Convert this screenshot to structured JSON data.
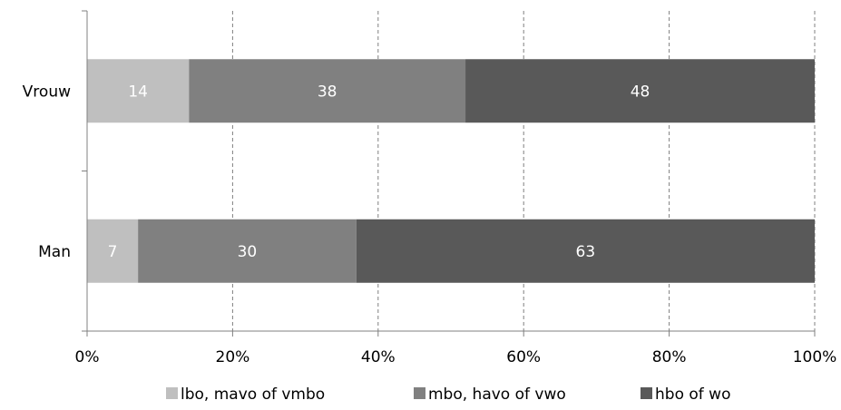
{
  "chart_data": {
    "type": "bar",
    "orientation": "horizontal",
    "stacked": "percent",
    "title": "",
    "xlabel": "",
    "ylabel": "",
    "categories": [
      "Vrouw",
      "Man"
    ],
    "series": [
      {
        "name": "lbo, mavo of vmbo",
        "values": [
          14,
          7
        ],
        "color": "#bfbfbf"
      },
      {
        "name": "mbo, havo of vwo",
        "values": [
          38,
          30
        ],
        "color": "#808080"
      },
      {
        "name": "hbo of wo",
        "values": [
          48,
          63
        ],
        "color": "#595959"
      }
    ],
    "xlim": [
      0,
      100
    ],
    "xticks": [
      "0%",
      "20%",
      "40%",
      "60%",
      "80%",
      "100%"
    ],
    "grid": "vertical dashed",
    "legend_position": "bottom",
    "data_label_color": "#ffffff"
  }
}
